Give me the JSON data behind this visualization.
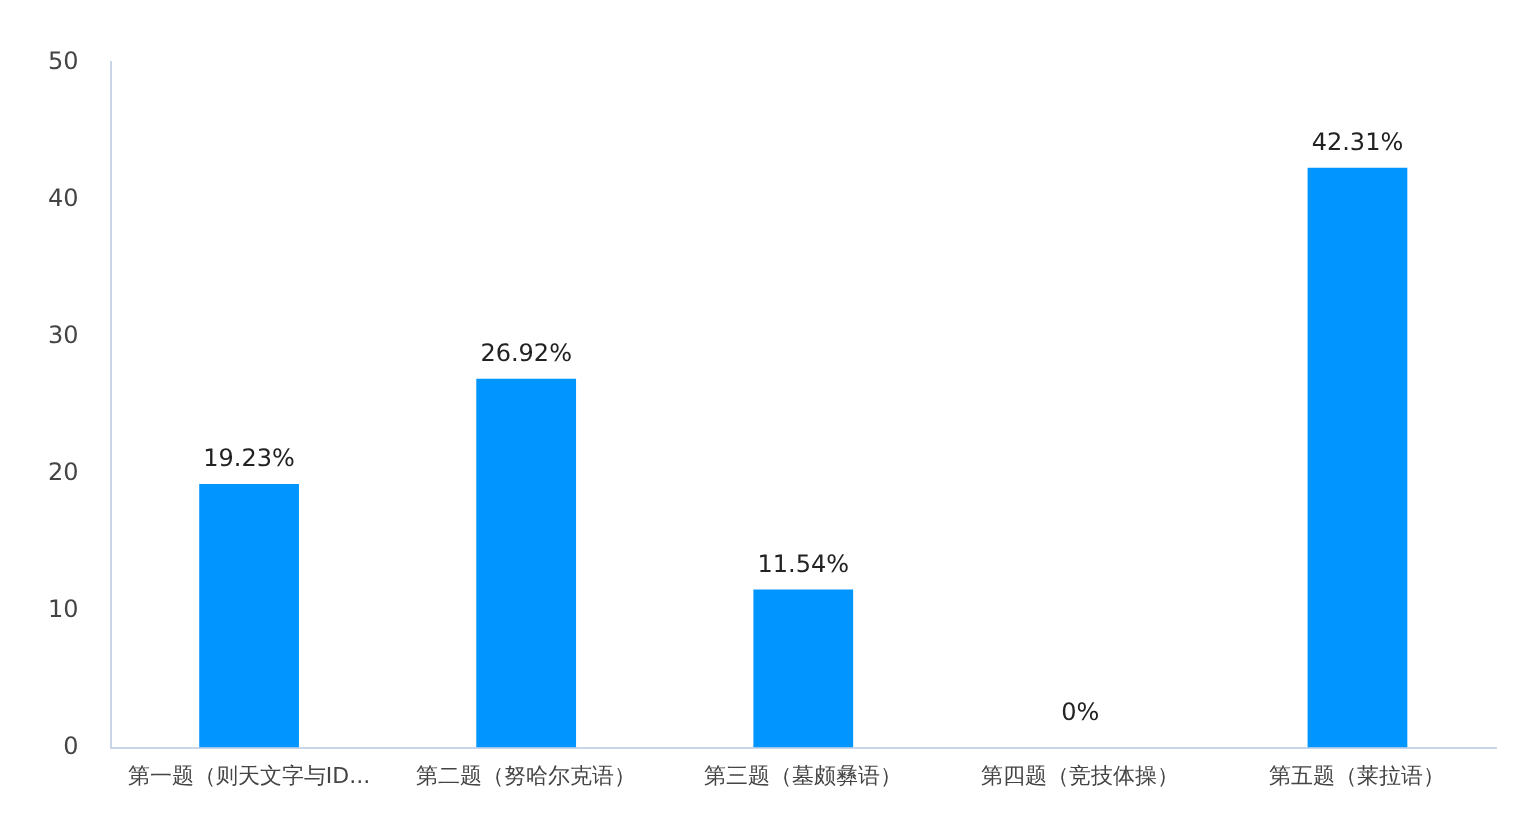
{
  "chart_data": {
    "type": "bar",
    "categories": [
      "第一题（则天文字与ID...",
      "第二题（努哈尔克语）",
      "第三题（墓颇彝语）",
      "第四题（竞技体操）",
      "第五题（莱拉语）"
    ],
    "values": [
      19.23,
      26.92,
      11.54,
      0,
      42.31
    ],
    "value_labels": [
      "19.23%",
      "26.92%",
      "11.54%",
      "0%",
      "42.31%"
    ],
    "color": "#0095ff",
    "ylim": [
      0,
      50
    ],
    "yticks": [
      0,
      10,
      20,
      30,
      40,
      50
    ],
    "grid": false,
    "legend": false
  }
}
